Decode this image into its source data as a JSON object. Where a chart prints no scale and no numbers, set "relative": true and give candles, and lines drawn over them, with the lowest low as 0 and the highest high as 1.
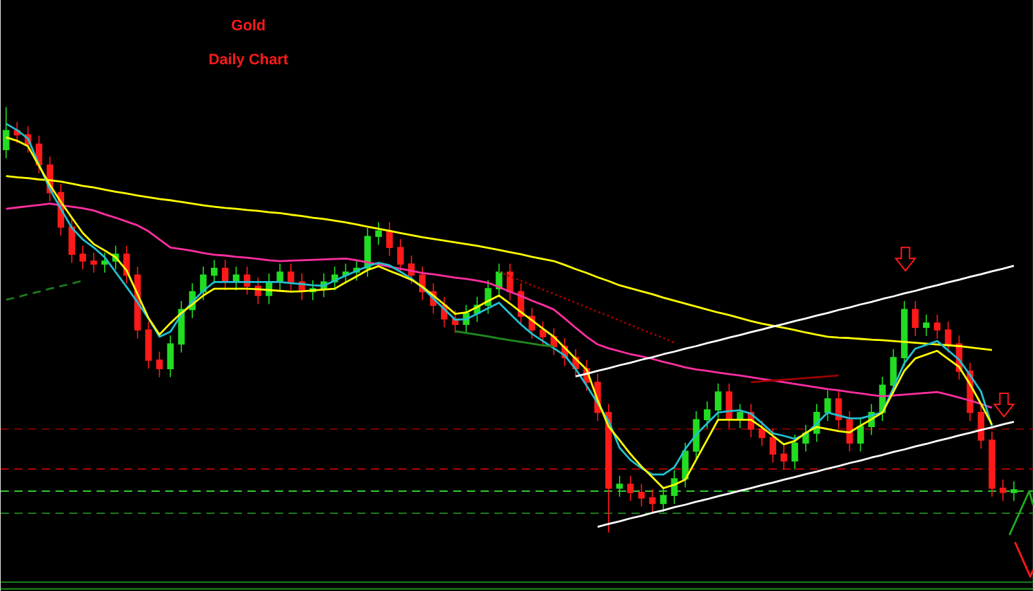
{
  "chart_data": {
    "type": "candlestick",
    "title": "Gold",
    "subtitle": "Daily Chart",
    "relative": true,
    "categories": [
      null,
      null,
      null,
      null,
      null,
      null,
      null,
      null,
      null,
      null,
      null,
      null,
      null,
      null,
      null,
      null,
      null,
      null,
      null,
      null,
      null,
      null,
      null,
      null,
      null,
      null,
      null,
      null,
      null,
      null,
      null,
      null,
      null,
      null,
      null,
      null,
      null,
      null,
      null,
      null,
      null,
      null,
      null,
      null,
      null,
      null,
      null,
      null,
      null,
      null,
      null,
      null,
      null,
      null,
      null,
      null,
      null,
      null,
      null,
      null,
      null,
      null,
      null,
      null,
      null,
      null,
      null,
      null,
      null,
      null,
      null,
      null,
      null,
      null,
      null,
      null,
      null,
      null,
      null,
      null,
      null,
      null,
      null,
      null,
      null,
      null,
      null,
      null,
      null,
      null,
      null,
      null,
      null
    ],
    "ohlc": [
      [
        0.9,
        1.0,
        0.88,
        0.945
      ],
      [
        0.945,
        0.965,
        0.915,
        0.935
      ],
      [
        0.935,
        0.955,
        0.893,
        0.913
      ],
      [
        0.913,
        0.933,
        0.844,
        0.864
      ],
      [
        0.864,
        0.884,
        0.779,
        0.799
      ],
      [
        0.799,
        0.819,
        0.698,
        0.718
      ],
      [
        0.718,
        0.738,
        0.634,
        0.654
      ],
      [
        0.654,
        0.674,
        0.618,
        0.638
      ],
      [
        0.638,
        0.658,
        0.611,
        0.631
      ],
      [
        0.631,
        0.658,
        0.611,
        0.638
      ],
      [
        0.638,
        0.674,
        0.618,
        0.654
      ],
      [
        0.654,
        0.674,
        0.585,
        0.605
      ],
      [
        0.605,
        0.625,
        0.456,
        0.476
      ],
      [
        0.476,
        0.496,
        0.385,
        0.405
      ],
      [
        0.405,
        0.425,
        0.365,
        0.385
      ],
      [
        0.385,
        0.463,
        0.365,
        0.443
      ],
      [
        0.443,
        0.544,
        0.423,
        0.524
      ],
      [
        0.524,
        0.586,
        0.504,
        0.566
      ],
      [
        0.566,
        0.625,
        0.546,
        0.605
      ],
      [
        0.605,
        0.641,
        0.585,
        0.621
      ],
      [
        0.621,
        0.641,
        0.569,
        0.589
      ],
      [
        0.589,
        0.625,
        0.569,
        0.605
      ],
      [
        0.605,
        0.625,
        0.559,
        0.579
      ],
      [
        0.579,
        0.599,
        0.537,
        0.557
      ],
      [
        0.557,
        0.609,
        0.537,
        0.589
      ],
      [
        0.589,
        0.632,
        0.569,
        0.612
      ],
      [
        0.612,
        0.632,
        0.569,
        0.589
      ],
      [
        0.589,
        0.609,
        0.546,
        0.566
      ],
      [
        0.566,
        0.593,
        0.546,
        0.573
      ],
      [
        0.573,
        0.609,
        0.553,
        0.589
      ],
      [
        0.589,
        0.625,
        0.569,
        0.605
      ],
      [
        0.605,
        0.632,
        0.585,
        0.612
      ],
      [
        0.612,
        0.641,
        0.592,
        0.621
      ],
      [
        0.621,
        0.716,
        0.601,
        0.696
      ],
      [
        0.696,
        0.729,
        0.676,
        0.709
      ],
      [
        0.709,
        0.729,
        0.65,
        0.67
      ],
      [
        0.67,
        0.69,
        0.611,
        0.631
      ],
      [
        0.631,
        0.651,
        0.585,
        0.605
      ],
      [
        0.605,
        0.625,
        0.546,
        0.566
      ],
      [
        0.566,
        0.586,
        0.514,
        0.534
      ],
      [
        0.534,
        0.554,
        0.482,
        0.502
      ],
      [
        0.502,
        0.522,
        0.469,
        0.489
      ],
      [
        0.489,
        0.535,
        0.469,
        0.515
      ],
      [
        0.515,
        0.554,
        0.495,
        0.534
      ],
      [
        0.534,
        0.593,
        0.514,
        0.573
      ],
      [
        0.573,
        0.632,
        0.553,
        0.612
      ],
      [
        0.612,
        0.632,
        0.546,
        0.566
      ],
      [
        0.566,
        0.586,
        0.488,
        0.508
      ],
      [
        0.508,
        0.528,
        0.456,
        0.476
      ],
      [
        0.476,
        0.496,
        0.44,
        0.46
      ],
      [
        0.46,
        0.48,
        0.417,
        0.437
      ],
      [
        0.437,
        0.457,
        0.391,
        0.411
      ],
      [
        0.411,
        0.431,
        0.365,
        0.385
      ],
      [
        0.385,
        0.405,
        0.333,
        0.353
      ],
      [
        0.353,
        0.373,
        0.262,
        0.282
      ],
      [
        0.282,
        0.302,
        0.0,
        0.104
      ],
      [
        0.104,
        0.133,
        0.084,
        0.113
      ],
      [
        0.113,
        0.133,
        0.074,
        0.094
      ],
      [
        0.094,
        0.114,
        0.061,
        0.081
      ],
      [
        0.081,
        0.101,
        0.048,
        0.068
      ],
      [
        0.068,
        0.107,
        0.048,
        0.087
      ],
      [
        0.087,
        0.146,
        0.067,
        0.126
      ],
      [
        0.126,
        0.211,
        0.106,
        0.191
      ],
      [
        0.191,
        0.285,
        0.171,
        0.265
      ],
      [
        0.265,
        0.308,
        0.245,
        0.288
      ],
      [
        0.288,
        0.35,
        0.268,
        0.33
      ],
      [
        0.33,
        0.35,
        0.245,
        0.265
      ],
      [
        0.265,
        0.302,
        0.245,
        0.282
      ],
      [
        0.282,
        0.302,
        0.223,
        0.243
      ],
      [
        0.243,
        0.263,
        0.203,
        0.223
      ],
      [
        0.223,
        0.243,
        0.164,
        0.184
      ],
      [
        0.184,
        0.204,
        0.148,
        0.168
      ],
      [
        0.168,
        0.23,
        0.148,
        0.21
      ],
      [
        0.21,
        0.253,
        0.19,
        0.233
      ],
      [
        0.233,
        0.302,
        0.213,
        0.282
      ],
      [
        0.282,
        0.334,
        0.262,
        0.314
      ],
      [
        0.314,
        0.334,
        0.245,
        0.265
      ],
      [
        0.265,
        0.285,
        0.19,
        0.21
      ],
      [
        0.21,
        0.269,
        0.19,
        0.249
      ],
      [
        0.249,
        0.302,
        0.229,
        0.282
      ],
      [
        0.282,
        0.366,
        0.262,
        0.346
      ],
      [
        0.346,
        0.431,
        0.326,
        0.411
      ],
      [
        0.411,
        0.544,
        0.391,
        0.524
      ],
      [
        0.524,
        0.544,
        0.462,
        0.482
      ],
      [
        0.482,
        0.512,
        0.462,
        0.492
      ],
      [
        0.492,
        0.512,
        0.456,
        0.476
      ],
      [
        0.476,
        0.496,
        0.423,
        0.443
      ],
      [
        0.443,
        0.463,
        0.359,
        0.379
      ],
      [
        0.379,
        0.399,
        0.262,
        0.282
      ],
      [
        0.282,
        0.302,
        0.197,
        0.217
      ],
      [
        0.217,
        0.237,
        0.084,
        0.104
      ],
      [
        0.104,
        0.124,
        0.074,
        0.094
      ],
      [
        0.094,
        0.12,
        0.074,
        0.1
      ]
    ],
    "series": [
      {
        "type": "line",
        "color": "#ffff00",
        "values": [
          0.838,
          0.835,
          0.833,
          0.83,
          0.828,
          0.825,
          0.82,
          0.815,
          0.811,
          0.806,
          0.801,
          0.797,
          0.792,
          0.788,
          0.784,
          0.781,
          0.777,
          0.773,
          0.769,
          0.766,
          0.763,
          0.761,
          0.758,
          0.756,
          0.753,
          0.751,
          0.747,
          0.744,
          0.74,
          0.737,
          0.733,
          0.729,
          0.724,
          0.719,
          0.714,
          0.709,
          0.704,
          0.699,
          0.694,
          0.69,
          0.686,
          0.682,
          0.678,
          0.674,
          0.669,
          0.664,
          0.659,
          0.654,
          0.648,
          0.643,
          0.638,
          0.629,
          0.619,
          0.61,
          0.6,
          0.591,
          0.581,
          0.574,
          0.567,
          0.56,
          0.552,
          0.545,
          0.538,
          0.531,
          0.524,
          0.517,
          0.511,
          0.504,
          0.497,
          0.491,
          0.486,
          0.481,
          0.476,
          0.47,
          0.465,
          0.46,
          0.458,
          0.457,
          0.455,
          0.453,
          0.452,
          0.45,
          0.448,
          0.446,
          0.444,
          0.442,
          0.44,
          0.438,
          0.435,
          0.432,
          0.429,
          null,
          null
        ]
      },
      {
        "type": "line",
        "color": "#ff2fa0",
        "values": [
          0.761,
          0.764,
          0.767,
          0.77,
          0.773,
          0.769,
          0.766,
          0.762,
          0.757,
          0.748,
          0.74,
          0.731,
          0.722,
          0.708,
          0.689,
          0.67,
          0.666,
          0.662,
          0.657,
          0.653,
          0.651,
          0.648,
          0.646,
          0.643,
          0.64,
          0.638,
          0.639,
          0.64,
          0.641,
          0.642,
          0.643,
          0.644,
          0.64,
          0.635,
          0.63,
          0.625,
          0.62,
          0.615,
          0.61,
          0.607,
          0.603,
          0.599,
          0.596,
          0.592,
          0.587,
          0.577,
          0.566,
          0.556,
          0.545,
          0.535,
          0.524,
          0.503,
          0.481,
          0.46,
          0.442,
          0.433,
          0.426,
          0.419,
          0.414,
          0.408,
          0.401,
          0.395,
          0.388,
          0.383,
          0.38,
          0.376,
          0.372,
          0.369,
          0.365,
          0.361,
          0.357,
          0.353,
          0.349,
          0.345,
          0.341,
          0.337,
          0.334,
          0.33,
          0.327,
          0.323,
          0.32,
          0.322,
          0.324,
          0.326,
          0.328,
          0.33,
          0.324,
          0.317,
          0.31,
          0.302,
          0.293,
          null,
          null
        ]
      },
      {
        "type": "line",
        "color": "#22c0d0",
        "values": [
          0.961,
          0.946,
          0.926,
          0.865,
          0.807,
          0.761,
          0.716,
          0.689,
          0.67,
          0.647,
          0.612,
          0.577,
          0.541,
          0.503,
          0.46,
          0.472,
          0.512,
          0.542,
          0.568,
          0.589,
          0.589,
          0.589,
          0.589,
          0.589,
          0.589,
          0.589,
          0.586,
          0.584,
          0.581,
          0.58,
          0.592,
          0.604,
          0.615,
          0.626,
          0.634,
          0.628,
          0.613,
          0.597,
          0.576,
          0.55,
          0.525,
          0.5,
          0.501,
          0.514,
          0.527,
          0.54,
          0.514,
          0.489,
          0.467,
          0.45,
          0.433,
          0.416,
          0.384,
          0.345,
          0.304,
          0.262,
          0.199,
          0.17,
          0.151,
          0.136,
          0.136,
          0.153,
          0.196,
          0.23,
          0.256,
          0.282,
          0.285,
          0.287,
          0.279,
          0.257,
          0.233,
          0.227,
          0.22,
          0.231,
          0.256,
          0.282,
          0.275,
          0.268,
          0.268,
          0.275,
          0.282,
          0.34,
          0.398,
          0.432,
          0.441,
          0.45,
          0.428,
          0.406,
          0.37,
          0.331,
          0.25,
          null,
          null
        ]
      },
      {
        "type": "line",
        "color": "#ffff00",
        "values": [
          0.929,
          0.921,
          0.908,
          0.862,
          0.817,
          0.777,
          0.74,
          0.704,
          0.678,
          0.663,
          0.647,
          0.616,
          0.56,
          0.504,
          0.465,
          0.492,
          0.516,
          0.536,
          0.557,
          0.573,
          0.573,
          0.573,
          0.573,
          0.572,
          0.57,
          0.568,
          0.566,
          0.567,
          0.569,
          0.571,
          0.573,
          0.588,
          0.602,
          0.617,
          0.626,
          0.615,
          0.605,
          0.594,
          0.578,
          0.557,
          0.536,
          0.514,
          0.517,
          0.53,
          0.544,
          0.557,
          0.538,
          0.518,
          0.499,
          0.479,
          0.46,
          0.434,
          0.408,
          0.383,
          0.311,
          0.249,
          0.217,
          0.184,
          0.155,
          0.13,
          0.104,
          0.112,
          0.124,
          0.171,
          0.218,
          0.265,
          0.265,
          0.265,
          0.265,
          0.247,
          0.227,
          0.207,
          0.215,
          0.234,
          0.248,
          0.243,
          0.238,
          0.235,
          0.251,
          0.266,
          0.282,
          0.331,
          0.38,
          0.409,
          0.418,
          0.427,
          0.408,
          0.389,
          0.348,
          0.302,
          0.253,
          null,
          null
        ]
      },
      {
        "type": "line",
        "color": "#ffffff",
        "values": [
          null,
          null,
          null,
          null,
          null,
          null,
          null,
          null,
          null,
          null,
          null,
          null,
          null,
          null,
          null,
          null,
          null,
          null,
          null,
          null,
          null,
          null,
          null,
          null,
          null,
          null,
          null,
          null,
          null,
          null,
          null,
          null,
          null,
          null,
          null,
          null,
          null,
          null,
          null,
          null,
          null,
          null,
          null,
          null,
          null,
          null,
          null,
          null,
          null,
          null,
          null,
          null,
          0.367,
          0.373,
          0.38,
          0.386,
          0.393,
          0.399,
          0.406,
          0.412,
          0.419,
          0.425,
          0.432,
          0.438,
          0.445,
          0.451,
          0.458,
          0.464,
          0.471,
          0.477,
          0.484,
          0.49,
          0.497,
          0.503,
          0.51,
          0.516,
          0.523,
          0.529,
          0.536,
          0.542,
          0.549,
          0.555,
          0.562,
          0.568,
          0.575,
          0.581,
          0.588,
          0.594,
          0.601,
          0.607,
          0.614,
          0.62,
          0.627
        ]
      },
      {
        "type": "line",
        "color": "#ffffff",
        "values": [
          null,
          null,
          null,
          null,
          null,
          null,
          null,
          null,
          null,
          null,
          null,
          null,
          null,
          null,
          null,
          null,
          null,
          null,
          null,
          null,
          null,
          null,
          null,
          null,
          null,
          null,
          null,
          null,
          null,
          null,
          null,
          null,
          null,
          null,
          null,
          null,
          null,
          null,
          null,
          null,
          null,
          null,
          null,
          null,
          null,
          null,
          null,
          null,
          null,
          null,
          null,
          null,
          null,
          null,
          0.013,
          0.02,
          0.026,
          0.033,
          0.039,
          0.046,
          0.052,
          0.059,
          0.065,
          0.072,
          0.078,
          0.085,
          0.091,
          0.098,
          0.104,
          0.111,
          0.117,
          0.124,
          0.13,
          0.137,
          0.143,
          0.15,
          0.156,
          0.163,
          0.169,
          0.176,
          0.182,
          0.189,
          0.195,
          0.202,
          0.208,
          0.215,
          0.221,
          0.228,
          0.234,
          0.241,
          0.247,
          0.254,
          0.26
        ]
      },
      {
        "type": "line",
        "color": "#1e7a1e",
        "line_style": "dashed",
        "values": [
          0.547,
          0.553,
          0.56,
          0.566,
          0.573,
          0.579,
          0.585,
          0.592,
          null,
          null,
          null,
          null,
          null,
          null,
          null,
          null,
          null,
          null,
          null,
          null,
          null,
          null,
          null,
          null,
          null,
          null,
          null,
          null,
          null,
          null,
          null,
          null,
          null,
          null,
          null,
          null,
          null,
          null,
          null,
          null,
          null,
          null,
          null,
          null,
          null,
          null,
          null,
          null,
          null,
          null,
          null,
          null,
          null,
          null,
          null,
          null,
          null,
          null,
          null,
          null,
          null,
          null,
          null,
          null,
          null,
          null,
          null,
          null,
          null,
          null,
          null,
          null,
          null,
          null,
          null,
          null,
          null,
          null,
          null,
          null,
          null,
          null,
          null,
          null,
          null,
          null,
          null,
          null,
          null,
          null,
          null,
          null,
          null
        ]
      },
      {
        "type": "line",
        "color": "#1e8c1e",
        "values": [
          null,
          null,
          null,
          null,
          null,
          null,
          null,
          null,
          null,
          null,
          null,
          null,
          null,
          null,
          null,
          null,
          null,
          null,
          null,
          null,
          null,
          null,
          null,
          null,
          null,
          null,
          null,
          null,
          null,
          null,
          null,
          null,
          null,
          null,
          null,
          null,
          null,
          null,
          null,
          null,
          null,
          0.473,
          0.469,
          0.465,
          0.461,
          0.456,
          0.452,
          0.448,
          0.444,
          0.44,
          0.437,
          null,
          null,
          null,
          null,
          null,
          null,
          null,
          null,
          null,
          null,
          null,
          null,
          null,
          null,
          null,
          null,
          null,
          null,
          null,
          null,
          null,
          null,
          null,
          null,
          null,
          null,
          null,
          null,
          null,
          null,
          null,
          null,
          null,
          null,
          null,
          null,
          null,
          null,
          null,
          null,
          null,
          null
        ]
      },
      {
        "type": "line",
        "color": "#a00000",
        "values": [
          null,
          null,
          null,
          null,
          null,
          null,
          null,
          null,
          null,
          null,
          null,
          null,
          null,
          null,
          null,
          null,
          null,
          null,
          null,
          null,
          null,
          null,
          null,
          null,
          null,
          null,
          null,
          null,
          null,
          null,
          null,
          null,
          null,
          null,
          null,
          null,
          null,
          null,
          null,
          null,
          null,
          null,
          null,
          null,
          null,
          null,
          null,
          null,
          null,
          null,
          null,
          null,
          null,
          null,
          null,
          null,
          null,
          null,
          null,
          null,
          null,
          null,
          null,
          null,
          null,
          null,
          null,
          null,
          0.353,
          0.355,
          0.357,
          0.359,
          0.361,
          0.363,
          0.365,
          0.367,
          0.369,
          null,
          null,
          null,
          null,
          null,
          null,
          null,
          null,
          null,
          null,
          null,
          null,
          null,
          null,
          null,
          null
        ]
      },
      {
        "type": "line",
        "color": "#a00000",
        "line_style": "dotted",
        "values": [
          null,
          null,
          null,
          null,
          null,
          null,
          null,
          null,
          null,
          null,
          null,
          null,
          null,
          null,
          null,
          null,
          null,
          null,
          null,
          null,
          null,
          null,
          null,
          null,
          null,
          null,
          null,
          null,
          null,
          null,
          null,
          null,
          null,
          null,
          null,
          null,
          null,
          null,
          null,
          null,
          null,
          null,
          null,
          null,
          null,
          0.613,
          0.602,
          0.592,
          0.581,
          0.571,
          0.561,
          0.55,
          0.54,
          0.529,
          0.519,
          0.509,
          0.498,
          0.488,
          0.477,
          0.467,
          0.457,
          0.446,
          null,
          null,
          null,
          null,
          null,
          null,
          null,
          null,
          null,
          null,
          null,
          null,
          null,
          null,
          null,
          null,
          null,
          null,
          null,
          null,
          null,
          null,
          null,
          null,
          null,
          null,
          null,
          null,
          null,
          null,
          null
        ]
      }
    ],
    "ref_lines": [
      {
        "axis": "y",
        "value": 0.243,
        "color": "#8b0000",
        "line_style": "dashed"
      },
      {
        "axis": "y",
        "value": 0.149,
        "color": "#cc0000",
        "line_style": "dashed"
      },
      {
        "axis": "y",
        "value": 0.097,
        "color": "#33cc33",
        "line_style": "dashed"
      },
      {
        "axis": "y",
        "value": 0.045,
        "color": "#1e8c1e",
        "line_style": "dashed"
      },
      {
        "axis": "y",
        "value": -0.117,
        "color": "#1e8c1e",
        "line_style": "solid"
      },
      {
        "axis": "y",
        "value": -0.133,
        "color": "#1e8c1e",
        "line_style": "solid"
      }
    ]
  }
}
